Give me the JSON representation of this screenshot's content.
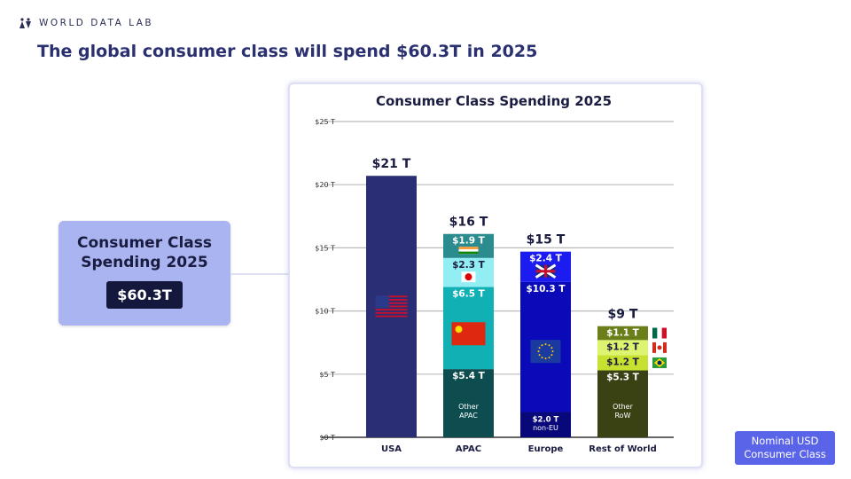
{
  "brand": "WORLD DATA LAB",
  "headline": "The global consumer class will spend $60.3T in 2025",
  "summary": {
    "title_line1": "Consumer Class",
    "title_line2": "Spending 2025",
    "value": "$60.3T"
  },
  "badge": {
    "line1": "Nominal USD",
    "line2": "Consumer Class"
  },
  "chart_data": {
    "type": "bar",
    "stacked": true,
    "title": "Consumer Class Spending 2025",
    "ylim": [
      0,
      25
    ],
    "grid": true,
    "yticks": [
      0,
      5,
      10,
      15,
      20,
      25
    ],
    "ytick_labels": [
      "$0 T",
      "$5 T",
      "$10 T",
      "$15 T",
      "$20 T",
      "$25 T"
    ],
    "categories": [
      "USA",
      "APAC",
      "Europe",
      "Rest of World"
    ],
    "totals": [
      "$21 T",
      "$16 T",
      "$15 T",
      "$9 T"
    ],
    "bars": [
      {
        "category": "USA",
        "segments": [
          {
            "value": 20.7,
            "label": "",
            "sublabel": "",
            "color": "#2a2f75",
            "flag": "usa"
          }
        ]
      },
      {
        "category": "APAC",
        "segments": [
          {
            "value": 5.4,
            "label": "$5.4 T",
            "sublabel": "Other APAC",
            "color": "#0e4d4f",
            "flag": ""
          },
          {
            "value": 6.5,
            "label": "$6.5 T",
            "sublabel": "",
            "color": "#10b0b5",
            "flag": "china"
          },
          {
            "value": 2.3,
            "label": "$2.3 T",
            "sublabel": "",
            "color": "#92eef2",
            "flag": "japan",
            "dark": true
          },
          {
            "value": 1.9,
            "label": "$1.9 T",
            "sublabel": "",
            "color": "#2a8c8e",
            "flag": "india"
          }
        ]
      },
      {
        "category": "Europe",
        "segments": [
          {
            "value": 2.0,
            "label": "$2.0 T",
            "sublabel": "non-EU",
            "color": "#08087a",
            "flag": ""
          },
          {
            "value": 10.3,
            "label": "$10.3 T",
            "sublabel": "",
            "color": "#0a0ab8",
            "flag": "eu"
          },
          {
            "value": 2.4,
            "label": "$2.4 T",
            "sublabel": "",
            "color": "#1c1cf0",
            "flag": "uk"
          }
        ]
      },
      {
        "category": "Rest of World",
        "segments": [
          {
            "value": 5.3,
            "label": "$5.3 T",
            "sublabel": "Other RoW",
            "color": "#3a4214",
            "flag": ""
          },
          {
            "value": 1.2,
            "label": "$1.2 T",
            "sublabel": "",
            "color": "#c8e030",
            "flag": "brazil",
            "dark": true
          },
          {
            "value": 1.2,
            "label": "$1.2 T",
            "sublabel": "",
            "color": "#dcf470",
            "flag": "canada",
            "dark": true
          },
          {
            "value": 1.1,
            "label": "$1.1 T",
            "sublabel": "",
            "color": "#6a7e1a",
            "flag": "mexico"
          }
        ]
      }
    ]
  }
}
